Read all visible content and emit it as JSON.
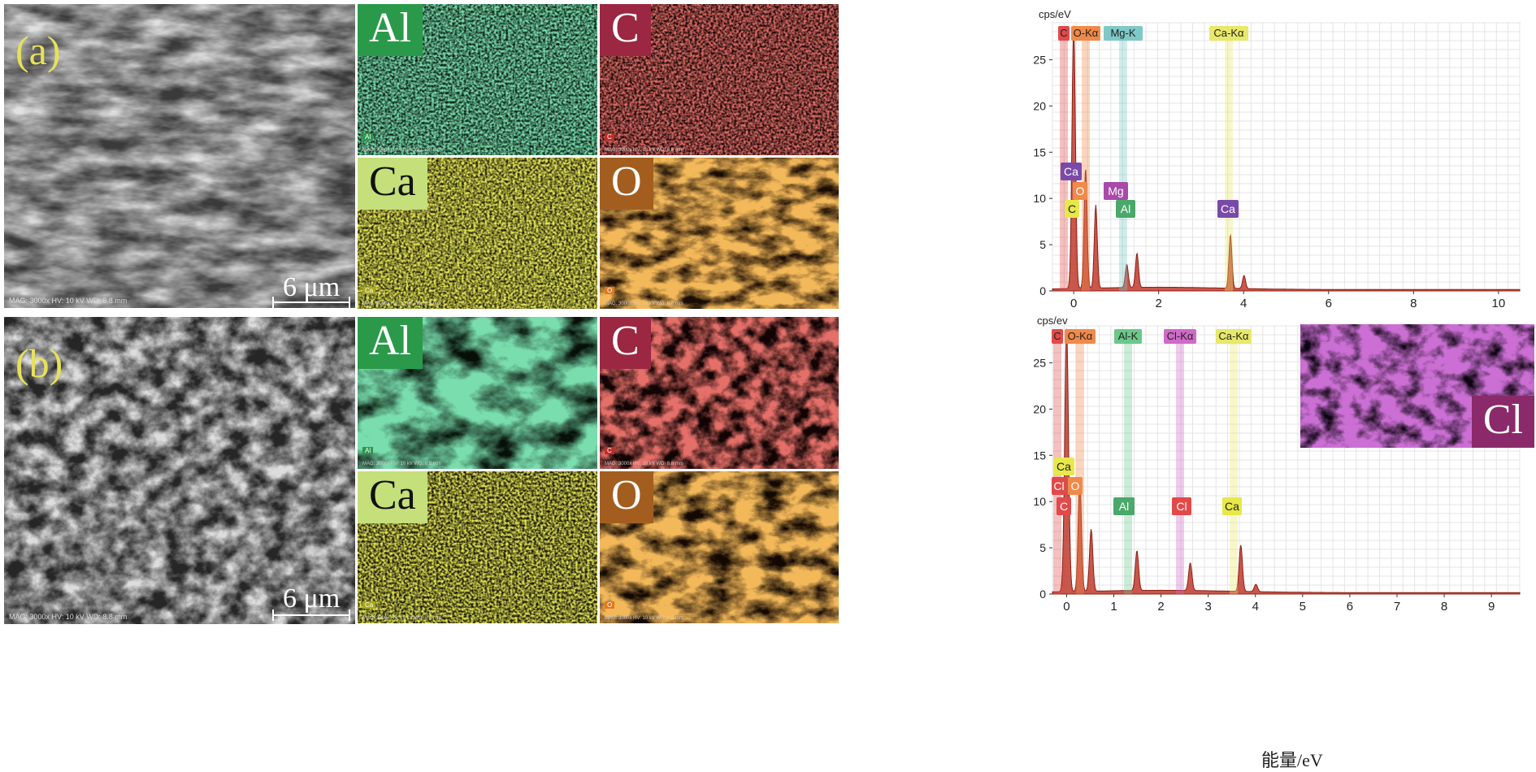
{
  "panels": [
    {
      "letter": "(a)",
      "sem_footer": "MAG: 3000x   HV: 10 kV   WD: 8.8 mm",
      "scale_label": "6 μm",
      "maps": [
        {
          "element": "Al",
          "tag": "Al",
          "color": "#2fb86a",
          "label_bg": "#2a9a4a",
          "label_dark": false
        },
        {
          "element": "C",
          "tag": "C",
          "color": "#c42a24",
          "label_bg": "#9b2742",
          "label_dark": false
        },
        {
          "element": "Ca",
          "tag": "Ca",
          "color": "#c8c81a",
          "label_bg": "#c5df7a",
          "label_dark": true
        },
        {
          "element": "O",
          "tag": "O",
          "color": "#e3781c",
          "label_bg": "#a35e1f",
          "label_dark": false
        }
      ],
      "map_footer": "MAG: 3000x   HV: 10 kV   WD: 8.8 mm",
      "map_scale": "6 μm",
      "spectrum": {
        "ylabel": "cps/eV",
        "xticks": [
          "0",
          "2",
          "4",
          "6",
          "8",
          "10"
        ],
        "yticks": [
          "0",
          "5",
          "10",
          "15",
          "20",
          "25"
        ],
        "top_labels": [
          {
            "text": "C",
            "color": "#e24a4a"
          },
          {
            "text": "O-Kα",
            "color": "#f08a4a"
          },
          {
            "text": "Mg-K",
            "color": "#7fc8c8"
          },
          {
            "text": "Ca-Kα",
            "color": "#e8e86a"
          }
        ],
        "peak_labels": [
          {
            "text": "Ca",
            "color": "#7a4aa8"
          },
          {
            "text": "O",
            "color": "#f08a4a"
          },
          {
            "text": "C",
            "color": "#e8e84a"
          },
          {
            "text": "Mg",
            "color": "#a84aa8"
          },
          {
            "text": "Al",
            "color": "#4aa86a"
          },
          {
            "text": "Ca",
            "color": "#7a4aa8"
          }
        ]
      }
    },
    {
      "letter": "(b)",
      "sem_footer": "MAG: 3000x   HV: 10 kV   WD: 8.8 mm",
      "scale_label": "6 μm",
      "maps": [
        {
          "element": "Al",
          "tag": "Al",
          "color": "#2fb86a",
          "label_bg": "#2a9a4a",
          "label_dark": false
        },
        {
          "element": "C",
          "tag": "C",
          "color": "#c42a24",
          "label_bg": "#9b2742",
          "label_dark": false
        },
        {
          "element": "Ca",
          "tag": "Ca",
          "color": "#c8c81a",
          "label_bg": "#c5df7a",
          "label_dark": true
        },
        {
          "element": "O",
          "tag": "O",
          "color": "#e3781c",
          "label_bg": "#a35e1f",
          "label_dark": false
        }
      ],
      "map_footer": "MAG: 3000x   HV: 10 kV   WD: 8.8 mm",
      "map_scale": "6 μm",
      "inset": {
        "element": "Cl",
        "color": "#9a2aa8",
        "label_bg": "#8a2a6a"
      },
      "spectrum": {
        "ylabel": "cps/ev",
        "xlabel": "能量/eV",
        "xticks": [
          "0",
          "1",
          "2",
          "3",
          "4",
          "5",
          "6",
          "7",
          "8",
          "9"
        ],
        "yticks": [
          "0",
          "5",
          "10",
          "15",
          "20",
          "25"
        ],
        "top_labels": [
          {
            "text": "C",
            "color": "#e24a4a"
          },
          {
            "text": "O-Kα",
            "color": "#f08a4a"
          },
          {
            "text": "Al-K",
            "color": "#6ac88a"
          },
          {
            "text": "Cl-Kα",
            "color": "#d06ac8"
          },
          {
            "text": "Ca-Kα",
            "color": "#e8e86a"
          }
        ],
        "peak_labels": [
          {
            "text": "Ca",
            "color": "#e8e84a"
          },
          {
            "text": "Cl",
            "color": "#e24a4a"
          },
          {
            "text": "O",
            "color": "#f08a4a"
          },
          {
            "text": "C",
            "color": "#e24a4a"
          },
          {
            "text": "Al",
            "color": "#4aa86a"
          },
          {
            "text": "Cl",
            "color": "#e24a4a"
          },
          {
            "text": "Ca",
            "color": "#e8e84a"
          }
        ]
      }
    }
  ],
  "chart_data": [
    {
      "type": "line",
      "xlabel": "",
      "ylabel": "cps/eV",
      "xlim": [
        -0.5,
        10.5
      ],
      "ylim": [
        0,
        29
      ],
      "grid": true,
      "peaks": [
        {
          "label": "C",
          "x": 0.28,
          "y": 13
        },
        {
          "label": "O",
          "x": 0.52,
          "y": 9
        },
        {
          "label": "Mg",
          "x": 1.25,
          "y": 2.5
        },
        {
          "label": "Al",
          "x": 1.49,
          "y": 3.7
        },
        {
          "label": "Ca",
          "x": 3.69,
          "y": 5.8
        },
        {
          "label": "Ca",
          "x": 4.01,
          "y": 1.4
        }
      ]
    },
    {
      "type": "line",
      "xlabel": "能量/eV",
      "ylabel": "cps/ev",
      "xlim": [
        -0.3,
        9.6
      ],
      "ylim": [
        0,
        29
      ],
      "grid": true,
      "peaks": [
        {
          "label": "C",
          "x": 0.28,
          "y": 12
        },
        {
          "label": "O",
          "x": 0.52,
          "y": 6.7
        },
        {
          "label": "Al",
          "x": 1.49,
          "y": 4.3
        },
        {
          "label": "Cl",
          "x": 2.62,
          "y": 3.0
        },
        {
          "label": "Ca",
          "x": 3.69,
          "y": 5.0
        },
        {
          "label": "Ca",
          "x": 4.01,
          "y": 0.8
        }
      ]
    }
  ]
}
